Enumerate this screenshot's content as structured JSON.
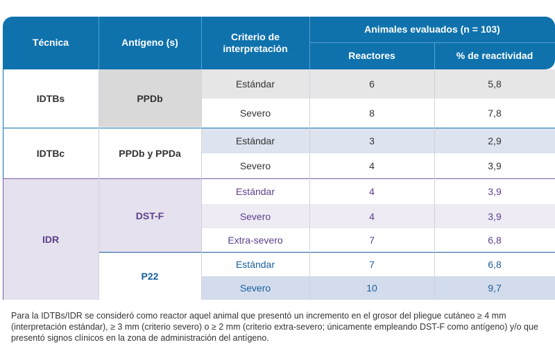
{
  "headers": {
    "tecnica": "Técnica",
    "antigeno": "Antígeno (s)",
    "criterio": "Criterio de\ninterpretación",
    "animales": "Animales evaluados (n = 103)",
    "reactores": "Reactores",
    "reactividad": "% de reactividad"
  },
  "groups": {
    "idtbs": {
      "tecnica": "IDTBs",
      "antigeno": "PPDb"
    },
    "idtbc": {
      "tecnica": "IDTBc",
      "antigeno": "PPDb y PPDa"
    },
    "idr": {
      "tecnica": "IDR",
      "antigeno_dst": "DST-F",
      "antigeno_p22": "P22"
    }
  },
  "rows": [
    {
      "criterio": "Estándar",
      "reactores": "6",
      "reactividad": "5,8"
    },
    {
      "criterio": "Severo",
      "reactores": "8",
      "reactividad": "7,8"
    },
    {
      "criterio": "Estándar",
      "reactores": "3",
      "reactividad": "2,9"
    },
    {
      "criterio": "Severo",
      "reactores": "4",
      "reactividad": "3,9"
    },
    {
      "criterio": "Estándar",
      "reactores": "4",
      "reactividad": "3,9"
    },
    {
      "criterio": "Severo",
      "reactores": "4",
      "reactividad": "3,9"
    },
    {
      "criterio": "Extra-severo",
      "reactores": "7",
      "reactividad": "6,8"
    },
    {
      "criterio": "Estándar",
      "reactores": "7",
      "reactividad": "6,8"
    },
    {
      "criterio": "Severo",
      "reactores": "10",
      "reactividad": "9,7"
    }
  ],
  "footnote": "Para la IDTBs/IDR se consideró como reactor aquel animal que presentó un incremento en el grosor del pliegue cutáneo ≥ 4 mm (interpretación estándar), ≥ 3 mm (criterio severo) o ≥ 2 mm (criterio extra-severo; únicamente empleando DST-F como antígeno) y/o que presentó signos clínicos en la zona de administración del antígeno.",
  "colors": {
    "header_blue": "#0f72ad",
    "group_idtbs": "#d9d9d9",
    "group_idtbc": "#dde3ef",
    "group_idr": "#e6e1ee",
    "group_p22": "#d3dcec",
    "text_purple": "#5b3f8c",
    "text_blue": "#1a5fa0"
  }
}
